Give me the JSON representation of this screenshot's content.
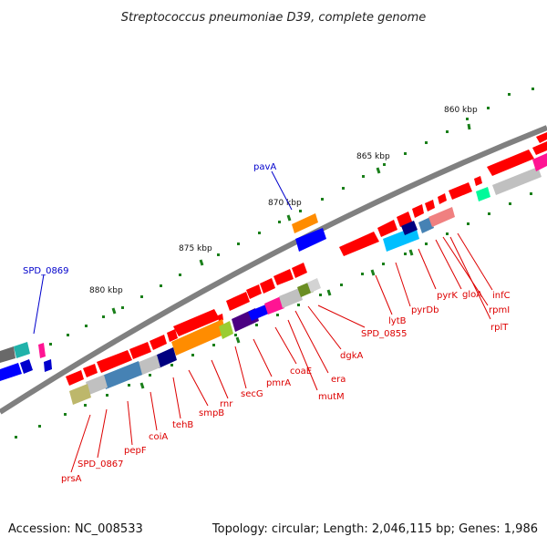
{
  "title": "Streptococcus pneumoniae D39, complete genome",
  "footer": {
    "accession": "Accession: NC_008533",
    "summary": "Topology: circular; Length: 2,046,115 bp; Genes: 1,986"
  },
  "ticks": [
    "860 kbp",
    "865 kbp",
    "870 kbp",
    "875 kbp",
    "880 kbp"
  ],
  "labels": {
    "red": [
      "prsA",
      "SPD_0867",
      "pepF",
      "coiA",
      "tehB",
      "smpB",
      "rnr",
      "secG",
      "pmrA",
      "coaE",
      "mutM",
      "era",
      "dgkA",
      "SPD_0855",
      "lytB",
      "pyrDb",
      "pyrK",
      "gloA",
      "rpmI",
      "rplT",
      "infC"
    ],
    "blue": [
      "pavA",
      "SPD_0869"
    ]
  },
  "colors": {
    "cds": "#ff0000",
    "cog_label": "#dd0000",
    "rna_label": "#0000cc",
    "backbone": "#808080",
    "tick": "#006400"
  }
}
